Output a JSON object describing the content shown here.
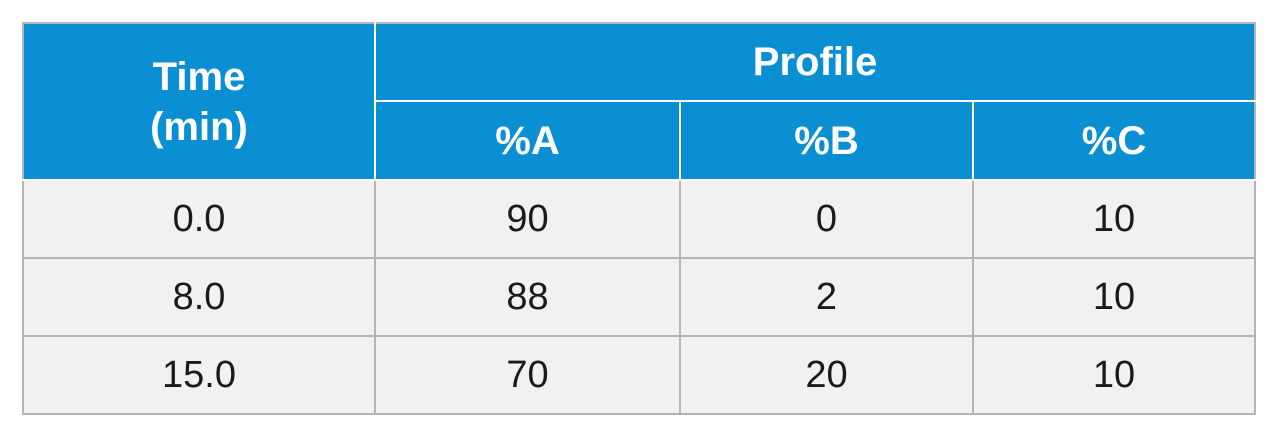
{
  "table": {
    "header": {
      "time_line1": "Time",
      "time_line2": "(min)",
      "profile": "Profile",
      "columns": [
        "%A",
        "%B",
        "%C"
      ]
    },
    "rows": [
      {
        "time": "0.0",
        "a": "90",
        "b": "0",
        "c": "10"
      },
      {
        "time": "8.0",
        "a": "88",
        "b": "2",
        "c": "10"
      },
      {
        "time": "15.0",
        "a": "70",
        "b": "20",
        "c": "10"
      }
    ]
  },
  "colors": {
    "header_bg": "#0b8fd3",
    "header_text": "#ffffff",
    "body_bg": "#f1f1f4",
    "border": "#b5b5b5"
  }
}
